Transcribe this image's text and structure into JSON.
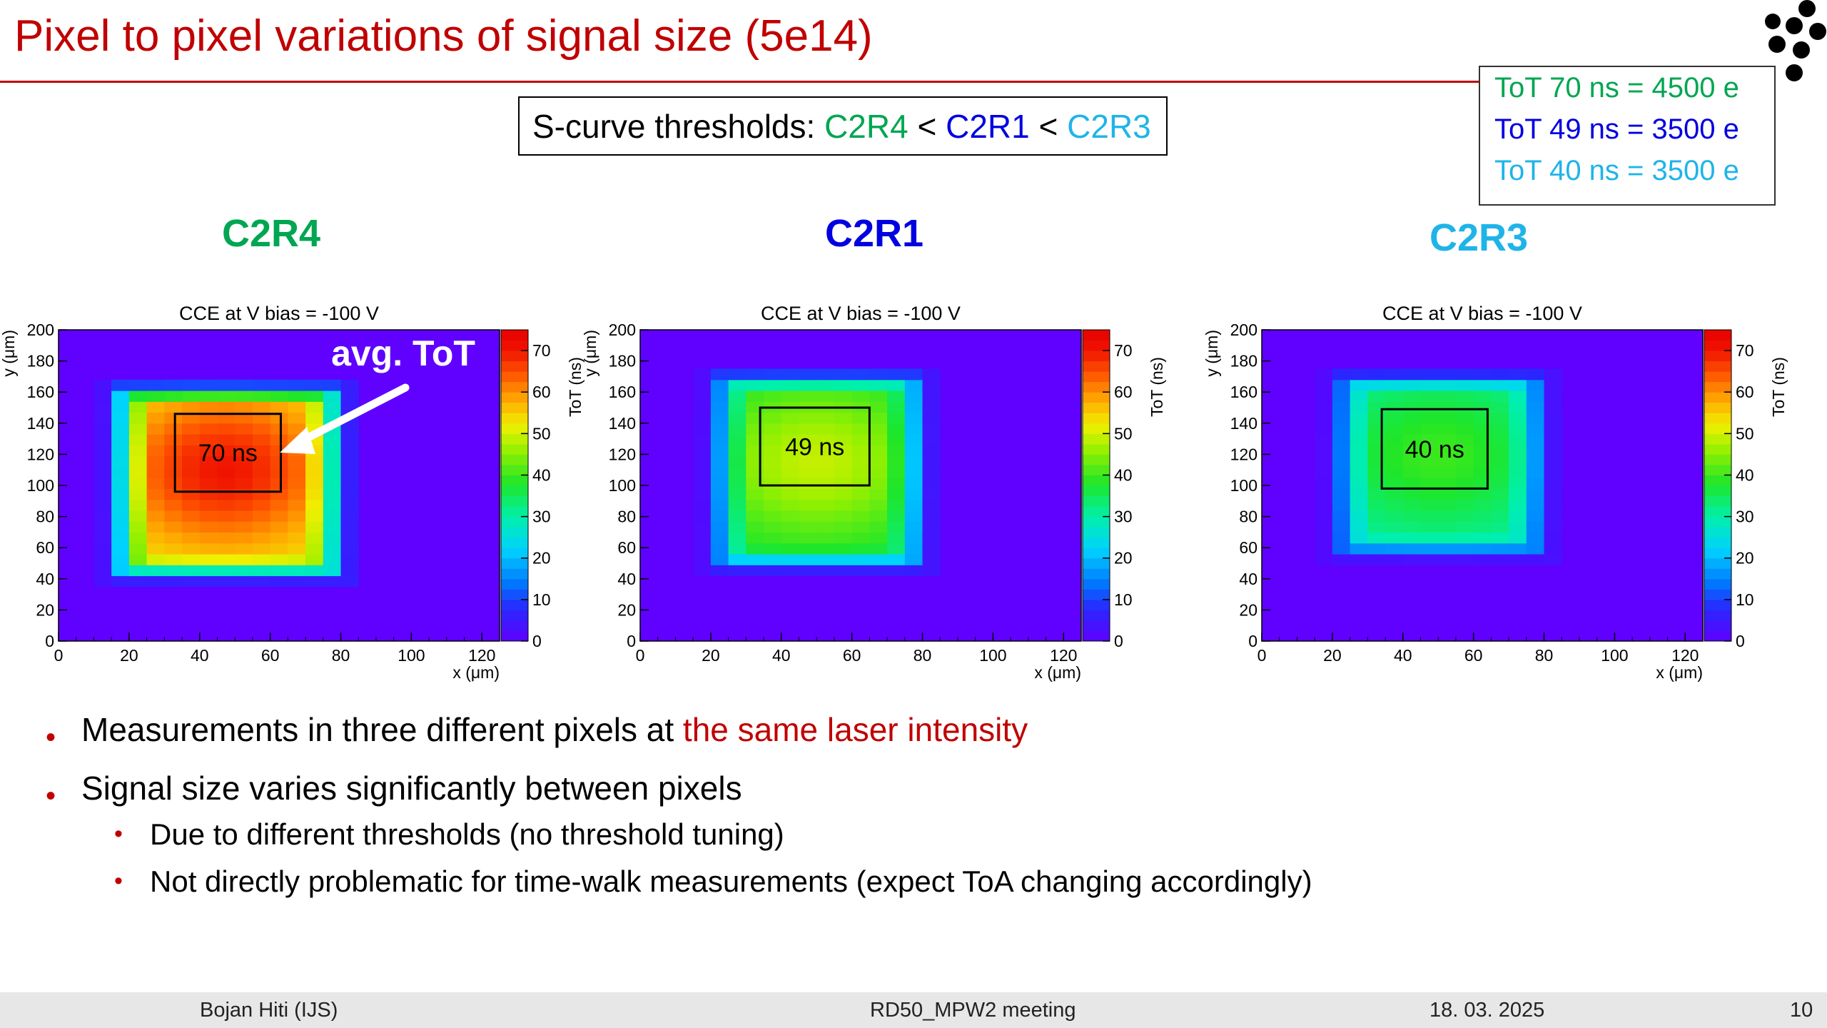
{
  "title": "Pixel to pixel variations of signal size (5e14)",
  "thresholds": {
    "prefix": "S-curve thresholds: ",
    "items": [
      {
        "label": "C2R4",
        "color": "#00a651"
      },
      {
        "sep": " < "
      },
      {
        "label": "C2R1",
        "color": "#0000e0"
      },
      {
        "sep": " < "
      },
      {
        "label": "C2R3",
        "color": "#1fb4e8"
      }
    ],
    "first": "C2R4",
    "sep1": " < ",
    "second": "C2R1",
    "sep2": " < ",
    "third": "C2R3"
  },
  "tot_legend": [
    {
      "text": "ToT 70 ns = 4500 e",
      "color": "#00a651"
    },
    {
      "text": "ToT 49 ns = 3500 e",
      "color": "#0000e0"
    },
    {
      "text": "ToT 40 ns = 3500 e",
      "color": "#1fb4e8"
    }
  ],
  "panels": [
    {
      "name": "C2R4",
      "color": "#00a651",
      "box_label": "70 ns",
      "peak": 70
    },
    {
      "name": "C2R1",
      "color": "#0000e0",
      "box_label": "49 ns",
      "peak": 49
    },
    {
      "name": "C2R3",
      "color": "#1fb4e8",
      "box_label": "40 ns",
      "peak": 40
    }
  ],
  "annotation": "avg. ToT",
  "chart_data": [
    {
      "type": "heatmap",
      "title": "CCE at V bias = -100 V",
      "xlabel": "x (μm)",
      "ylabel": "y (μm)",
      "zlabel": "ToT (ns)",
      "xlim": [
        0,
        125
      ],
      "ylim": [
        0,
        200
      ],
      "zlim": [
        0,
        75
      ],
      "xticks": [
        0,
        20,
        40,
        60,
        80,
        100,
        120
      ],
      "yticks": [
        0,
        20,
        40,
        60,
        80,
        100,
        120,
        140,
        160,
        180,
        200
      ],
      "zticks": [
        0,
        10,
        20,
        30,
        40,
        50,
        60,
        70
      ],
      "box_value": 70
    },
    {
      "type": "heatmap",
      "title": "CCE at V bias = -100 V",
      "xlabel": "x (μm)",
      "ylabel": "y (μm)",
      "zlabel": "ToT (ns)",
      "xlim": [
        0,
        125
      ],
      "ylim": [
        0,
        200
      ],
      "zlim": [
        0,
        75
      ],
      "xticks": [
        0,
        20,
        40,
        60,
        80,
        100,
        120
      ],
      "yticks": [
        0,
        20,
        40,
        60,
        80,
        100,
        120,
        140,
        160,
        180,
        200
      ],
      "zticks": [
        0,
        10,
        20,
        30,
        40,
        50,
        60,
        70
      ],
      "box_value": 49
    },
    {
      "type": "heatmap",
      "title": "CCE at V bias = -100 V",
      "xlabel": "x (μm)",
      "ylabel": "y (μm)",
      "zlabel": "ToT (ns)",
      "xlim": [
        0,
        125
      ],
      "ylim": [
        0,
        200
      ],
      "zlim": [
        0,
        75
      ],
      "xticks": [
        0,
        20,
        40,
        60,
        80,
        100,
        120
      ],
      "yticks": [
        0,
        20,
        40,
        60,
        80,
        100,
        120,
        140,
        160,
        180,
        200
      ],
      "zticks": [
        0,
        10,
        20,
        30,
        40,
        50,
        60,
        70
      ],
      "box_value": 40
    }
  ],
  "bullets": {
    "b1_text": "Measurements in three different pixels at ",
    "b1_highlight": "the same laser intensity",
    "b2_text": "Signal size varies significantly between pixels",
    "sub1": "Due to different thresholds (no threshold tuning)",
    "sub2": "Not directly problematic for time-walk measurements (expect ToA changing accordingly)"
  },
  "footer": {
    "author": "Bojan Hiti (IJS)",
    "meeting": "RD50_MPW2 meeting",
    "date": "18. 03. 2025",
    "page": "10"
  },
  "colors": {
    "title": "#c00000",
    "bullet": "#c00000",
    "highlight": "#c00000",
    "heat_bg": "#6000ff"
  }
}
